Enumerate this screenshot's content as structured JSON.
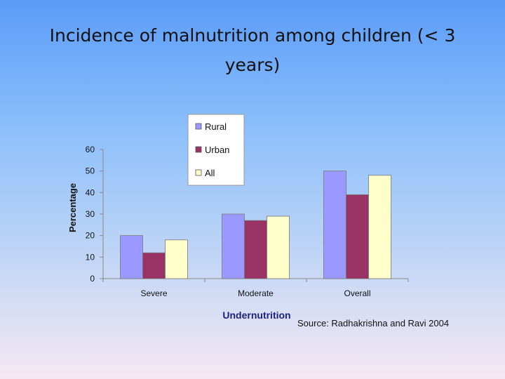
{
  "slide": {
    "title": "Incidence of malnutrition among children (< 3 years)"
  },
  "chart_data": {
    "type": "bar",
    "title": "",
    "xlabel": "Undernutrition",
    "ylabel": "Percentage",
    "ylim": [
      0,
      60
    ],
    "yticks": [
      0,
      10,
      20,
      30,
      40,
      50,
      60
    ],
    "categories": [
      "Severe",
      "Moderate",
      "Overall"
    ],
    "series": [
      {
        "name": "Rural",
        "color": "#9999ff",
        "values": [
          20,
          30,
          50
        ]
      },
      {
        "name": "Urban",
        "color": "#993366",
        "values": [
          12,
          27,
          39
        ]
      },
      {
        "name": "All",
        "color": "#ffffcc",
        "values": [
          18,
          29,
          48
        ]
      }
    ],
    "legend": "top-center",
    "grid": false,
    "source": "Source: Radhakrishna and Ravi 2004"
  }
}
